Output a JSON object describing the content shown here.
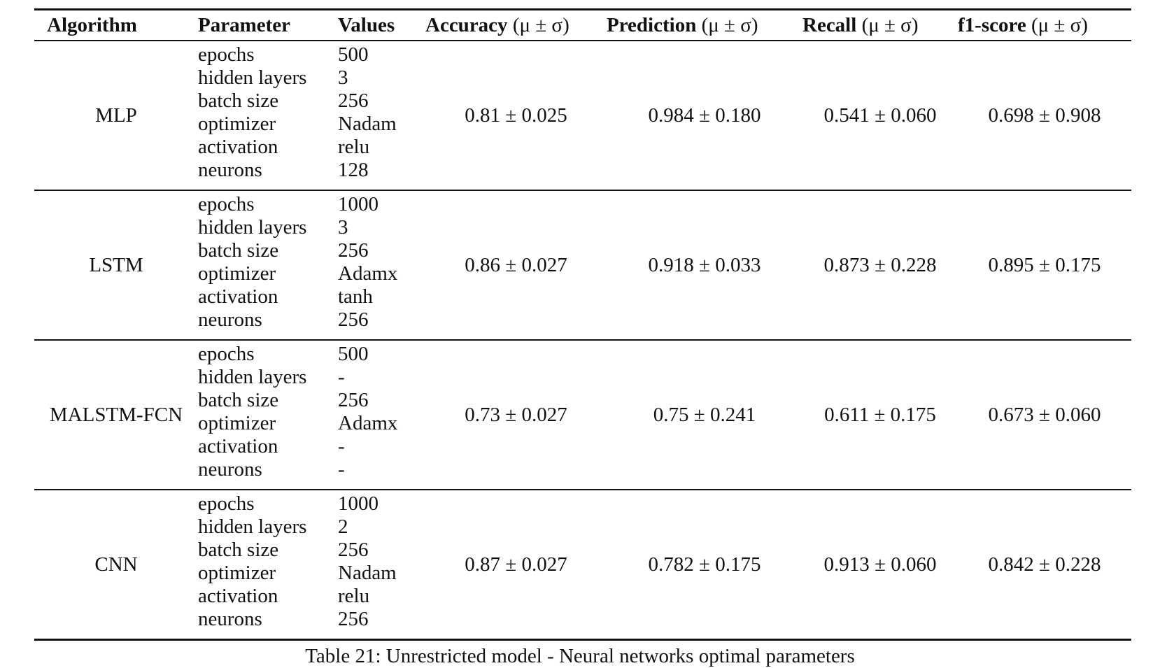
{
  "table": {
    "headers": {
      "algorithm": "Algorithm",
      "parameter": "Parameter",
      "values": "Values",
      "accuracy": "Accuracy",
      "prediction": "Prediction",
      "recall": "Recall",
      "f1": "f1-score",
      "stat_suffix": "(μ ± σ)"
    },
    "rows": [
      {
        "algorithm": "MLP",
        "params": [
          "epochs",
          "hidden layers",
          "batch size",
          "optimizer",
          "activation",
          "neurons"
        ],
        "values": [
          "500",
          "3",
          "256",
          "Nadam",
          "relu",
          "128"
        ],
        "accuracy": "0.81 ± 0.025",
        "prediction": "0.984 ± 0.180",
        "recall": "0.541 ± 0.060",
        "f1": "0.698 ± 0.908"
      },
      {
        "algorithm": "LSTM",
        "params": [
          "epochs",
          "hidden layers",
          "batch size",
          "optimizer",
          "activation",
          "neurons"
        ],
        "values": [
          "1000",
          "3",
          "256",
          "Adamx",
          "tanh",
          "256"
        ],
        "accuracy": "0.86 ± 0.027",
        "prediction": "0.918 ± 0.033",
        "recall": "0.873 ± 0.228",
        "f1": "0.895 ± 0.175"
      },
      {
        "algorithm": "MALSTM-FCN",
        "params": [
          "epochs",
          "hidden layers",
          "batch size",
          "optimizer",
          "activation",
          "neurons"
        ],
        "values": [
          "500",
          "-",
          "256",
          "Adamx",
          "-",
          "-"
        ],
        "accuracy": "0.73 ± 0.027",
        "prediction": "0.75 ± 0.241",
        "recall": "0.611 ± 0.175",
        "f1": "0.673 ± 0.060"
      },
      {
        "algorithm": "CNN",
        "params": [
          "epochs",
          "hidden layers",
          "batch size",
          "optimizer",
          "activation",
          "neurons"
        ],
        "values": [
          "1000",
          "2",
          "256",
          "Nadam",
          "relu",
          "256"
        ],
        "accuracy": "0.87 ± 0.027",
        "prediction": "0.782 ± 0.175",
        "recall": "0.913 ± 0.060",
        "f1": "0.842 ± 0.228"
      }
    ]
  },
  "caption": "Table 21: Unrestricted model - Neural networks optimal parameters"
}
